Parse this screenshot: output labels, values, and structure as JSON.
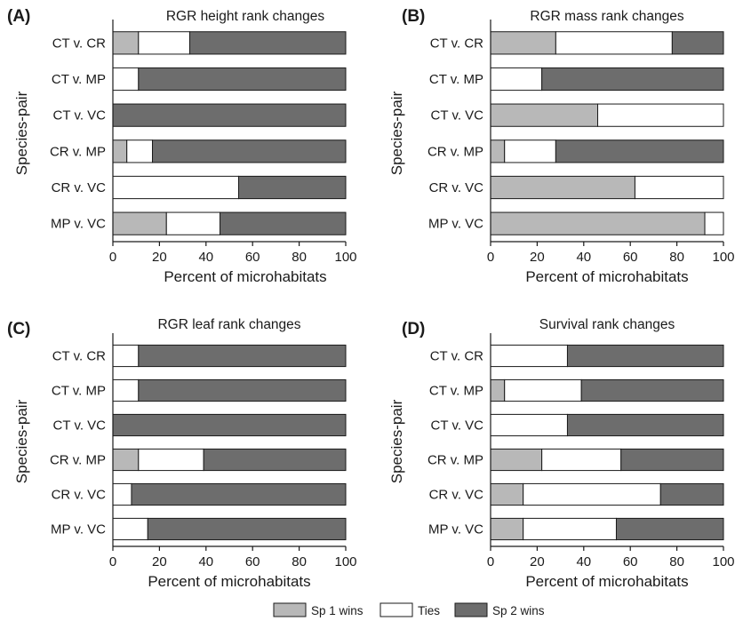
{
  "legend": {
    "items": [
      {
        "label": "Sp 1 wins",
        "color": "#b8b8b8"
      },
      {
        "label": "Ties",
        "color": "#ffffff"
      },
      {
        "label": "Sp 2 wins",
        "color": "#6d6d6d"
      }
    ]
  },
  "chart_data": [
    {
      "type": "bar",
      "orientation": "horizontal",
      "stacked": true,
      "panel_label": "(A)",
      "title": "RGR height rank changes",
      "xlabel": "Percent of microhabitats",
      "ylabel": "Species-pair",
      "xlim": [
        0,
        100
      ],
      "xticks": [
        "0",
        "20",
        "40",
        "60",
        "80",
        "100"
      ],
      "categories": [
        "CT v. CR",
        "CT v. MP",
        "CT v. VC",
        "CR v. MP",
        "CR v. VC",
        "MP v. VC"
      ],
      "series": [
        {
          "name": "Sp 1 wins",
          "values": [
            11,
            0,
            0,
            6,
            0,
            23
          ]
        },
        {
          "name": "Ties",
          "values": [
            22,
            11,
            0,
            11,
            54,
            23
          ]
        },
        {
          "name": "Sp 2 wins",
          "values": [
            67,
            89,
            100,
            83,
            46,
            54
          ]
        }
      ]
    },
    {
      "type": "bar",
      "orientation": "horizontal",
      "stacked": true,
      "panel_label": "(B)",
      "title": "RGR mass rank changes",
      "xlabel": "Percent of microhabitats",
      "ylabel": "Species-pair",
      "xlim": [
        0,
        100
      ],
      "xticks": [
        "0",
        "20",
        "40",
        "60",
        "80",
        "100"
      ],
      "categories": [
        "CT v. CR",
        "CT v. MP",
        "CT v. VC",
        "CR v. MP",
        "CR v. VC",
        "MP v. VC"
      ],
      "series": [
        {
          "name": "Sp 1 wins",
          "values": [
            28,
            0,
            46,
            6,
            62,
            92
          ]
        },
        {
          "name": "Ties",
          "values": [
            50,
            22,
            54,
            22,
            38,
            8
          ]
        },
        {
          "name": "Sp 2 wins",
          "values": [
            22,
            78,
            0,
            72,
            0,
            0
          ]
        }
      ]
    },
    {
      "type": "bar",
      "orientation": "horizontal",
      "stacked": true,
      "panel_label": "(C)",
      "title": "RGR leaf rank changes",
      "xlabel": "Percent of microhabitats",
      "ylabel": "Species-pair",
      "xlim": [
        0,
        100
      ],
      "xticks": [
        "0",
        "20",
        "40",
        "60",
        "80",
        "100"
      ],
      "categories": [
        "CT v. CR",
        "CT v. MP",
        "CT v. VC",
        "CR v. MP",
        "CR v. VC",
        "MP v. VC"
      ],
      "series": [
        {
          "name": "Sp 1 wins",
          "values": [
            0,
            0,
            0,
            11,
            0,
            0
          ]
        },
        {
          "name": "Ties",
          "values": [
            11,
            11,
            0,
            28,
            8,
            15
          ]
        },
        {
          "name": "Sp 2 wins",
          "values": [
            89,
            89,
            100,
            61,
            92,
            85
          ]
        }
      ]
    },
    {
      "type": "bar",
      "orientation": "horizontal",
      "stacked": true,
      "panel_label": "(D)",
      "title": "Survival rank changes",
      "xlabel": "Percent of microhabitats",
      "ylabel": "Species-pair",
      "xlim": [
        0,
        100
      ],
      "xticks": [
        "0",
        "20",
        "40",
        "60",
        "80",
        "100"
      ],
      "categories": [
        "CT v. CR",
        "CT v. MP",
        "CT v. VC",
        "CR v. MP",
        "CR v. VC",
        "MP v. VC"
      ],
      "series": [
        {
          "name": "Sp 1 wins",
          "values": [
            0,
            6,
            0,
            22,
            14,
            14
          ]
        },
        {
          "name": "Ties",
          "values": [
            33,
            33,
            33,
            34,
            59,
            40
          ]
        },
        {
          "name": "Sp 2 wins",
          "values": [
            67,
            61,
            67,
            44,
            27,
            46
          ]
        }
      ]
    }
  ]
}
